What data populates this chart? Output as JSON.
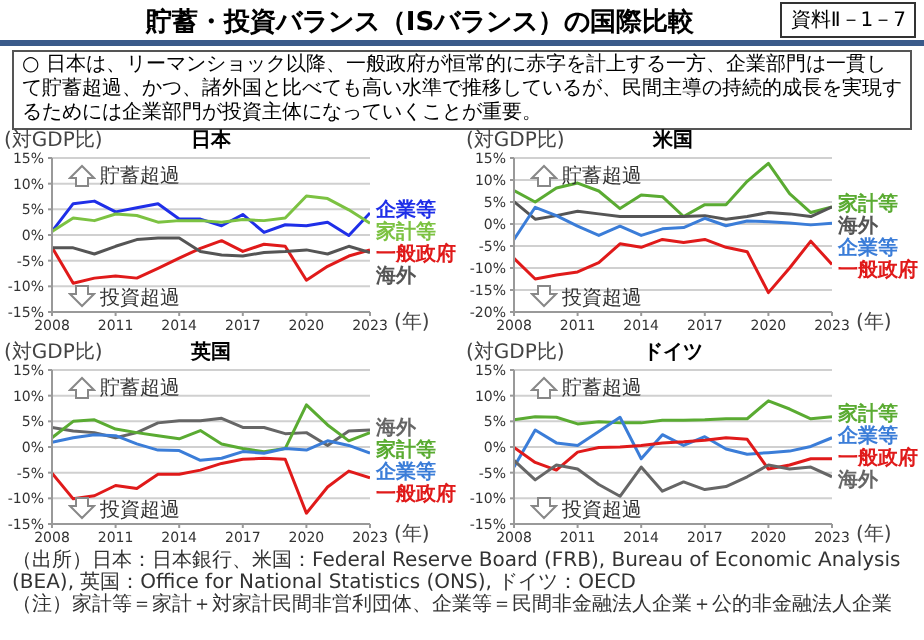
{
  "chart_data": [
    {
      "type": "other",
      "title": "貯蓄・投資バランス（ISバランス）の国際比較",
      "subtitle": "資料Ⅱ－1－7",
      "annotations": [
        "○ 日本は、リーマンショック以降、一般政府が恒常的に赤字を計上する一方、企業部門は一貫して貯蓄超過、かつ、諸外国と比べても高い水準で推移しているが、民間主導の持続的成長を実現するためには企業部門が投資主体になっていくことが重要。",
        "（出所）日本：日本銀行、米国：Federal Reserve Board (FRB), Bureau of Economic Analysis (BEA), 英国：Office for National Statistics (ONS), ドイツ：OECD",
        "（注）家計等＝家計＋対家計民間非営利団体、企業等＝民間非金融法人企業＋公的非金融法人企業"
      ]
    },
    {
      "type": "line",
      "title": "日本",
      "ylabel": "(対GDP比)",
      "xlabel": "(年)",
      "x": [
        2008,
        2009,
        2010,
        2011,
        2012,
        2013,
        2014,
        2015,
        2016,
        2017,
        2018,
        2019,
        2020,
        2021,
        2022,
        2023
      ],
      "xlim": [
        2008,
        2023
      ],
      "xticks": [
        2008,
        2011,
        2014,
        2017,
        2020,
        2023
      ],
      "ylim": [
        -15,
        15
      ],
      "yticks": [
        {
          "value": -15,
          "label": "-15%"
        },
        {
          "value": -10,
          "label": "-10%"
        },
        {
          "value": -5,
          "label": "-5%"
        },
        {
          "value": 0,
          "label": "0%"
        },
        {
          "value": 5,
          "label": "5%"
        },
        {
          "value": 10,
          "label": "10%"
        },
        {
          "value": 15,
          "label": "15%"
        }
      ],
      "grid": "y",
      "annotations": [
        "貯蓄超過",
        "投資超過"
      ],
      "series": [
        {
          "name": "企業等",
          "color": "#1f2fe8",
          "values": [
            0.7,
            6.1,
            6.6,
            4.5,
            5.3,
            6.1,
            3.1,
            3.1,
            1.8,
            4.0,
            0.5,
            2.0,
            1.8,
            2.5,
            -0.1,
            4.3
          ]
        },
        {
          "name": "家計等",
          "color": "#7cc242",
          "values": [
            0.7,
            3.3,
            2.8,
            4.1,
            3.8,
            2.5,
            2.8,
            2.8,
            2.5,
            3.0,
            2.8,
            3.3,
            7.6,
            7.1,
            4.9,
            2.3
          ]
        },
        {
          "name": "一般政府",
          "color": "#e01a1a",
          "values": [
            -2.4,
            -9.4,
            -8.4,
            -8.0,
            -8.4,
            -6.5,
            -4.5,
            -2.6,
            -1.1,
            -3.2,
            -1.8,
            -2.2,
            -8.8,
            -6.1,
            -4.1,
            -2.9
          ]
        },
        {
          "name": "海外",
          "color": "#555555",
          "values": [
            -2.5,
            -2.5,
            -3.7,
            -2.2,
            -0.9,
            -0.6,
            -0.6,
            -3.2,
            -3.9,
            -4.1,
            -3.4,
            -3.2,
            -2.9,
            -3.7,
            -2.2,
            -3.4
          ]
        }
      ]
    },
    {
      "type": "line",
      "title": "米国",
      "ylabel": "(対GDP比)",
      "xlabel": "(年)",
      "x": [
        2008,
        2009,
        2010,
        2011,
        2012,
        2013,
        2014,
        2015,
        2016,
        2017,
        2018,
        2019,
        2020,
        2021,
        2022,
        2023
      ],
      "xlim": [
        2008,
        2023
      ],
      "xticks": [
        2008,
        2011,
        2014,
        2017,
        2020,
        2023
      ],
      "ylim": [
        -20,
        15
      ],
      "yticks": [
        {
          "value": -20,
          "label": "-20%"
        },
        {
          "value": -15,
          "label": "-15%"
        },
        {
          "value": -10,
          "label": "-10%"
        },
        {
          "value": -5,
          "label": "-5%"
        },
        {
          "value": 0,
          "label": "0%"
        },
        {
          "value": 5,
          "label": "5%"
        },
        {
          "value": 10,
          "label": "10%"
        },
        {
          "value": 15,
          "label": "15%"
        }
      ],
      "grid": "y",
      "annotations": [
        "貯蓄超過",
        "投資超過"
      ],
      "series": [
        {
          "name": "家計等",
          "color": "#5aab32",
          "values": [
            7.6,
            5.0,
            8.2,
            9.3,
            7.5,
            3.5,
            6.6,
            6.2,
            1.7,
            4.4,
            4.4,
            9.7,
            13.8,
            6.9,
            2.6,
            3.9
          ]
        },
        {
          "name": "海外",
          "color": "#555555",
          "values": [
            5.1,
            1.1,
            1.9,
            2.9,
            2.3,
            1.7,
            1.7,
            1.7,
            1.7,
            1.9,
            1.1,
            1.7,
            2.6,
            2.3,
            1.7,
            3.9
          ]
        },
        {
          "name": "企業等",
          "color": "#3b7dd8",
          "values": [
            -3.5,
            3.8,
            1.9,
            -0.5,
            -2.6,
            -0.5,
            -2.6,
            -1.1,
            -0.8,
            1.3,
            -0.4,
            0.7,
            0.5,
            0.2,
            -0.2,
            0.2
          ]
        },
        {
          "name": "一般政府",
          "color": "#e01a1a",
          "values": [
            -7.8,
            -12.5,
            -11.6,
            -10.9,
            -8.8,
            -4.5,
            -5.3,
            -3.5,
            -4.2,
            -3.5,
            -5.3,
            -6.3,
            -15.6,
            -10.0,
            -3.9,
            -9.2
          ]
        }
      ]
    },
    {
      "type": "line",
      "title": "英国",
      "ylabel": "(対GDP比)",
      "xlabel": "(年)",
      "x": [
        2008,
        2009,
        2010,
        2011,
        2012,
        2013,
        2014,
        2015,
        2016,
        2017,
        2018,
        2019,
        2020,
        2021,
        2022,
        2023
      ],
      "xlim": [
        2008,
        2023
      ],
      "xticks": [
        2008,
        2011,
        2014,
        2017,
        2020,
        2023
      ],
      "ylim": [
        -15,
        15
      ],
      "yticks": [
        {
          "value": -15,
          "label": "-15%"
        },
        {
          "value": -10,
          "label": "-10%"
        },
        {
          "value": -5,
          "label": "-5%"
        },
        {
          "value": 0,
          "label": "0%"
        },
        {
          "value": 5,
          "label": "5%"
        },
        {
          "value": 10,
          "label": "10%"
        },
        {
          "value": 15,
          "label": "15%"
        }
      ],
      "grid": "y",
      "annotations": [
        "貯蓄超過",
        "投資超過"
      ],
      "series": [
        {
          "name": "海外",
          "color": "#666666",
          "values": [
            3.8,
            3.1,
            2.8,
            1.8,
            2.8,
            4.7,
            5.1,
            5.1,
            5.6,
            3.8,
            3.8,
            2.6,
            2.8,
            0.3,
            3.1,
            3.3
          ]
        },
        {
          "name": "家計等",
          "color": "#5aab32",
          "values": [
            1.8,
            5.0,
            5.3,
            3.5,
            2.8,
            2.2,
            1.6,
            3.2,
            0.6,
            -0.3,
            -0.9,
            -0.3,
            8.2,
            4.3,
            1.2,
            2.8
          ]
        },
        {
          "name": "企業等",
          "color": "#3b7dd8",
          "values": [
            0.9,
            1.8,
            2.4,
            2.2,
            0.6,
            -0.6,
            -0.7,
            -2.6,
            -2.2,
            -0.9,
            -1.2,
            -0.3,
            -0.6,
            1.2,
            0.3,
            -1.2
          ]
        },
        {
          "name": "一般政府",
          "color": "#e01a1a",
          "values": [
            -5.1,
            -10.1,
            -9.5,
            -7.5,
            -8.1,
            -5.3,
            -5.3,
            -4.5,
            -3.2,
            -2.4,
            -2.2,
            -2.4,
            -12.9,
            -7.8,
            -4.7,
            -6.0
          ]
        }
      ]
    },
    {
      "type": "line",
      "title": "ドイツ",
      "ylabel": "(対GDP比)",
      "xlabel": "(年)",
      "x": [
        2008,
        2009,
        2010,
        2011,
        2012,
        2013,
        2014,
        2015,
        2016,
        2017,
        2018,
        2019,
        2020,
        2021,
        2022,
        2023
      ],
      "xlim": [
        2008,
        2023
      ],
      "xticks": [
        2008,
        2011,
        2014,
        2017,
        2020,
        2023
      ],
      "ylim": [
        -15,
        15
      ],
      "yticks": [
        {
          "value": -15,
          "label": "-15%"
        },
        {
          "value": -10,
          "label": "-10%"
        },
        {
          "value": -5,
          "label": "-5%"
        },
        {
          "value": 0,
          "label": "0%"
        },
        {
          "value": 5,
          "label": "5%"
        },
        {
          "value": 10,
          "label": "10%"
        },
        {
          "value": 15,
          "label": "15%"
        }
      ],
      "grid": "y",
      "annotations": [
        "貯蓄超過",
        "投資超過"
      ],
      "series": [
        {
          "name": "家計等",
          "color": "#5aab32",
          "values": [
            5.3,
            5.9,
            5.8,
            4.5,
            4.9,
            4.7,
            4.7,
            5.2,
            5.2,
            5.3,
            5.5,
            5.5,
            9.0,
            7.4,
            5.5,
            5.9
          ]
        },
        {
          "name": "企業等",
          "color": "#3b7dd8",
          "values": [
            -3.9,
            3.3,
            0.8,
            0.3,
            3.0,
            5.8,
            -2.3,
            2.4,
            0.3,
            2.0,
            -0.4,
            -1.4,
            -1.1,
            -0.8,
            0.1,
            1.8
          ]
        },
        {
          "name": "一般政府",
          "color": "#e01a1a",
          "values": [
            -0.1,
            -3.0,
            -4.5,
            -1.0,
            -0.1,
            0.0,
            0.3,
            0.8,
            1.0,
            1.3,
            1.8,
            1.5,
            -4.3,
            -3.5,
            -2.3,
            -2.3
          ]
        },
        {
          "name": "海外",
          "color": "#666666",
          "values": [
            -2.6,
            -6.4,
            -3.5,
            -4.3,
            -7.3,
            -9.6,
            -3.9,
            -8.6,
            -6.8,
            -8.3,
            -7.7,
            -5.8,
            -3.5,
            -4.3,
            -3.9,
            -5.8
          ]
        }
      ]
    }
  ]
}
